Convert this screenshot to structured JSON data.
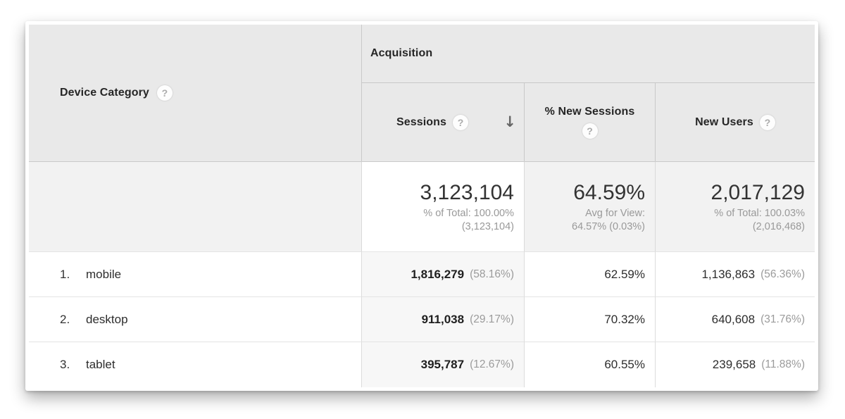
{
  "icons": {
    "help_glyph": "?",
    "sort_desc_glyph": "↓"
  },
  "colors": {
    "header_bg": "#e9e9e9",
    "totals_bg": "#f2f2f2",
    "sorted_column_bg": "#f7f7f7",
    "header_border": "#c9c9c9",
    "row_border": "#e4e4e4",
    "primary_text": "#2a2a2a",
    "secondary_text": "#999999"
  },
  "table": {
    "dimension_header": {
      "label": "Device Category"
    },
    "group_header": {
      "label": "Acquisition"
    },
    "columns": {
      "sessions": {
        "label": "Sessions",
        "sorted": "descending"
      },
      "new_sessions": {
        "label": "% New Sessions"
      },
      "new_users": {
        "label": "New Users"
      }
    },
    "summary": {
      "sessions": {
        "value": "3,123,104",
        "line1": "% of Total: 100.00%",
        "line2": "(3,123,104)"
      },
      "new_sessions": {
        "value": "64.59%",
        "line1": "Avg for View:",
        "line2": "64.57% (0.03%)"
      },
      "new_users": {
        "value": "2,017,129",
        "line1": "% of Total: 100.03%",
        "line2": "(2,016,468)"
      }
    },
    "rows": [
      {
        "index": "1.",
        "device": "mobile",
        "sessions": "1,816,279",
        "sessions_pct": "(58.16%)",
        "new_sessions": "62.59%",
        "new_users": "1,136,863",
        "new_users_pct": "(56.36%)"
      },
      {
        "index": "2.",
        "device": "desktop",
        "sessions": "911,038",
        "sessions_pct": "(29.17%)",
        "new_sessions": "70.32%",
        "new_users": "640,608",
        "new_users_pct": "(31.76%)"
      },
      {
        "index": "3.",
        "device": "tablet",
        "sessions": "395,787",
        "sessions_pct": "(12.67%)",
        "new_sessions": "60.55%",
        "new_users": "239,658",
        "new_users_pct": "(11.88%)"
      }
    ]
  }
}
